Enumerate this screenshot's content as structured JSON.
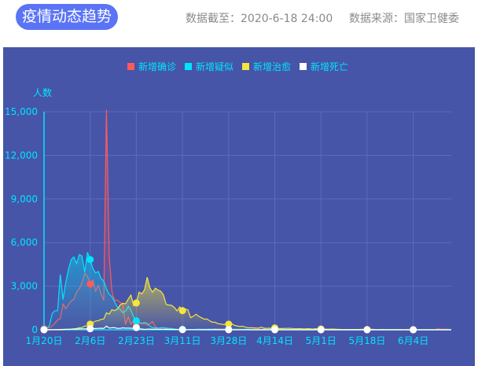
{
  "header": {
    "title": "疫情动态趋势",
    "updated": "数据截至：2020-6-18 24:00",
    "source": "数据来源：国家卫健委"
  },
  "chart_data": {
    "type": "line",
    "ylabel": "人数",
    "ylim": [
      0,
      15000
    ],
    "yticks": [
      "0",
      "3,000",
      "6,000",
      "9,000",
      "12,000",
      "15,000"
    ],
    "x_start": "2020-01-20",
    "x_end": "2020-06-18",
    "xticks": [
      "1月20日",
      "2月6日",
      "2月23日",
      "3月11日",
      "3月28日",
      "4月14日",
      "5月1日",
      "5月18日",
      "6月4日"
    ],
    "xtick_interval_days": 17,
    "grid": true,
    "legend_position": "top-center",
    "series": [
      {
        "name": "新增确诊",
        "color": "#ff5a5a",
        "values": [
          77,
          149,
          131,
          259,
          444,
          688,
          769,
          1771,
          1459,
          1737,
          1982,
          2102,
          2590,
          2829,
          3235,
          3887,
          3694,
          3143,
          3399,
          2656,
          3062,
          2478,
          2015,
          15152,
          5090,
          2641,
          2009,
          2048,
          1886,
          1749,
          394,
          889,
          397,
          648,
          409,
          508,
          406,
          433,
          327,
          427,
          573,
          202,
          125,
          119,
          139,
          143,
          99,
          44,
          40,
          19,
          24,
          15,
          8,
          11,
          20,
          16,
          21,
          13,
          34,
          39,
          41,
          46,
          39,
          78,
          47,
          67,
          55,
          54,
          45,
          31,
          48,
          36,
          35,
          31,
          19,
          30,
          39,
          32,
          62,
          63,
          42,
          46,
          99,
          108,
          89,
          46,
          46,
          26,
          27,
          16,
          12,
          11,
          30,
          10,
          6,
          11,
          12,
          11,
          3,
          22,
          4,
          12,
          12,
          1,
          2,
          1,
          2,
          1,
          4,
          1,
          14,
          17,
          5,
          7,
          7,
          4,
          5,
          10,
          5,
          9,
          6,
          11,
          5,
          3,
          11,
          3,
          7,
          5,
          1,
          1,
          2,
          1,
          0,
          16,
          5,
          4,
          7,
          5,
          4,
          3,
          3,
          3,
          2,
          11,
          11,
          57,
          49,
          40,
          44,
          28,
          25
        ]
      },
      {
        "name": "新增疑似",
        "color": "#00e5ff",
        "values": [
          27,
          100,
          300,
          1118,
          1309,
          1309,
          3806,
          2077,
          3248,
          4148,
          4812,
          5019,
          4562,
          5173,
          5072,
          3971,
          5328,
          4833,
          4214,
          3916,
          4008,
          3536,
          3342,
          2807,
          2450,
          2277,
          1918,
          1563,
          1432,
          1185,
          1277,
          1614,
          1361,
          882,
          620,
          530,
          439,
          508,
          452,
          248,
          141,
          132,
          119,
          143,
          143,
          102,
          99,
          84,
          60,
          36,
          31,
          33,
          33,
          17,
          39,
          12,
          45,
          45,
          35,
          27,
          25,
          51,
          34,
          33,
          42,
          24,
          30,
          50,
          47,
          26,
          28,
          20,
          36,
          20,
          42,
          38,
          34,
          23,
          16,
          12,
          28,
          29,
          11,
          26,
          25,
          14,
          15,
          10,
          6,
          15,
          17,
          6,
          14,
          9,
          4,
          4,
          4,
          2,
          4,
          3,
          4,
          9,
          7,
          4,
          6,
          8,
          0,
          1,
          2,
          1,
          4,
          8,
          2,
          4,
          1,
          2,
          2,
          1,
          4,
          1,
          0,
          0,
          2,
          1,
          6,
          1,
          0,
          0,
          0,
          0,
          2,
          4,
          2,
          1,
          0,
          0,
          0,
          2,
          0,
          1,
          0,
          1,
          1,
          1,
          6,
          5,
          4,
          2,
          2,
          0,
          0
        ]
      },
      {
        "name": "新增治愈",
        "color": "#f5e53c",
        "values": [
          0,
          0,
          0,
          6,
          3,
          11,
          2,
          9,
          43,
          21,
          47,
          72,
          85,
          147,
          157,
          262,
          261,
          387,
          510,
          600,
          632,
          716,
          744,
          1171,
          1081,
          1373,
          1323,
          1425,
          1701,
          1824,
          1779,
          2109,
          2394,
          1661,
          1845,
          2589,
          2473,
          2750,
          3622,
          2885,
          2589,
          2867,
          2742,
          2653,
          2401,
          1751,
          1705,
          1681,
          1535,
          1297,
          1578,
          1318,
          1427,
          1378,
          834,
          930,
          1074,
          926,
          828,
          733,
          741,
          621,
          519,
          524,
          421,
          403,
          359,
          384,
          388,
          441,
          313,
          272,
          223,
          241,
          200,
          145,
          146,
          135,
          123,
          120,
          188,
          116,
          97,
          113,
          75,
          130,
          89,
          91,
          87,
          97,
          103,
          95,
          72,
          69,
          81,
          69,
          52,
          75,
          72,
          47,
          78,
          62,
          55,
          63,
          42,
          41,
          51,
          43,
          35,
          25,
          17,
          23,
          23,
          17,
          23,
          19,
          24,
          35,
          14,
          17,
          21,
          38,
          7,
          10,
          20,
          23,
          13,
          14,
          8,
          17,
          8,
          23,
          10,
          9,
          20,
          6,
          6,
          10,
          7,
          8,
          6,
          10,
          6,
          7,
          5,
          10,
          12,
          6,
          14,
          10,
          11
        ]
      },
      {
        "name": "新增死亡",
        "color": "#ffffff",
        "values": [
          0,
          3,
          8,
          8,
          16,
          15,
          24,
          26,
          26,
          38,
          43,
          46,
          45,
          57,
          64,
          65,
          73,
          73,
          86,
          89,
          97,
          108,
          97,
          254,
          121,
          143,
          142,
          105,
          98,
          136,
          114,
          118,
          109,
          97,
          150,
          71,
          52,
          29,
          44,
          47,
          35,
          42,
          31,
          38,
          31,
          30,
          28,
          27,
          22,
          17,
          22,
          11,
          7,
          13,
          10,
          14,
          13,
          11,
          8,
          3,
          7,
          6,
          9,
          7,
          4,
          6,
          5,
          3,
          4,
          1,
          1,
          7,
          6,
          4,
          4,
          3,
          1,
          2,
          0,
          2,
          1,
          3,
          1,
          2,
          0,
          1,
          0,
          2,
          0,
          0,
          0,
          0,
          0,
          0,
          0,
          0,
          0,
          0,
          0,
          0,
          0,
          0,
          0,
          0,
          0,
          0,
          0,
          0,
          0,
          0,
          0,
          0,
          0,
          0,
          0,
          0,
          0,
          0,
          0,
          0,
          0,
          0,
          0,
          0,
          0,
          0,
          0,
          0,
          0,
          0,
          0,
          0,
          0,
          0,
          0,
          0,
          0,
          0,
          0,
          0,
          0,
          0,
          0,
          0,
          0,
          0,
          0,
          0,
          0,
          0,
          0
        ]
      }
    ]
  }
}
